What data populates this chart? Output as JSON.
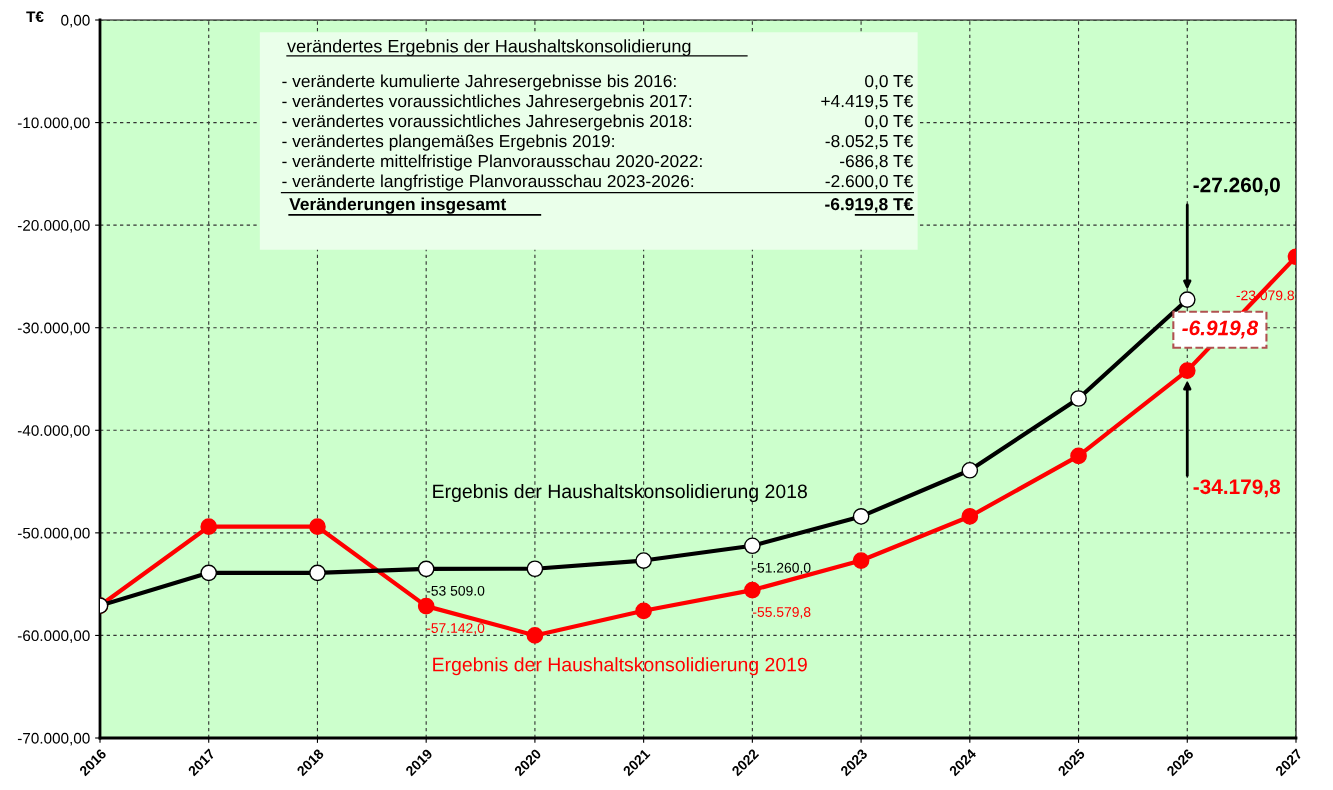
{
  "chart_data": {
    "type": "line",
    "ylabel": "T€",
    "categories": [
      "2016",
      "2017",
      "2018",
      "2019",
      "2020",
      "2021",
      "2022",
      "2023",
      "2024",
      "2025",
      "2026",
      "2027"
    ],
    "series": [
      {
        "name": "Ergebnis der Haushaltskonsolidierung 2018",
        "color": "#000000",
        "values": [
          -57100,
          -53900,
          -53900,
          -53509,
          -53500,
          -52700,
          -51260,
          -48400,
          -43900,
          -36900,
          -27260,
          null
        ],
        "value_labels": [
          null,
          null,
          null,
          "-53 509.0",
          null,
          null,
          "-51.260,0",
          null,
          null,
          null,
          null,
          null
        ]
      },
      {
        "name": "Ergebnis der Haushaltskonsolidierung 2019",
        "color": "#ff0000",
        "values": [
          -57100,
          -49400,
          -49400,
          -57142,
          -60000,
          -57600,
          -55579.8,
          -52700,
          -48400,
          -42500,
          -34179.8,
          -23079.8
        ],
        "value_labels": [
          null,
          null,
          null,
          "-57.142,0",
          null,
          null,
          "-55.579,8",
          null,
          null,
          null,
          null,
          "-23 079.8"
        ]
      }
    ],
    "ylim": [
      -70000,
      0
    ],
    "yticks": [
      {
        "value": 0,
        "label": "0,00"
      },
      {
        "value": -10000,
        "label": "-10.000,00"
      },
      {
        "value": -20000,
        "label": "-20.000,00"
      },
      {
        "value": -30000,
        "label": "-30.000,00"
      },
      {
        "value": -40000,
        "label": "-40.000,00"
      },
      {
        "value": -50000,
        "label": "-50.000,00"
      },
      {
        "value": -60000,
        "label": "-60.000,00"
      },
      {
        "value": -70000,
        "label": "-70.000,00"
      }
    ],
    "grid": true,
    "marker": "circle",
    "line_style": "solid",
    "annotations": [
      "verändertes Ergebnis der Haushaltskonsolidierung",
      "- veränderte kumulierte Jahresergebnisse bis 2016:",
      "0,0 T€",
      "- verändertes voraussichtliches Jahresergebnis 2017:",
      "+4.419,5 T€",
      "- verändertes voraussichtliches Jahresergebnis 2018:",
      "0,0 T€",
      "- verändertes plangemäßes Ergebnis 2019:",
      "-8.052,5 T€",
      "- veränderte mittelfristige Planvorausschau 2020-2022:",
      "-686,8 T€",
      "- veränderte langfristige Planvorausschau 2023-2026:",
      "-2.600,0 T€",
      "Veränderungen insgesamt",
      "-6.919,8 T€",
      "-6.919,8",
      "-27.260,0",
      "-34.179,8"
    ]
  }
}
